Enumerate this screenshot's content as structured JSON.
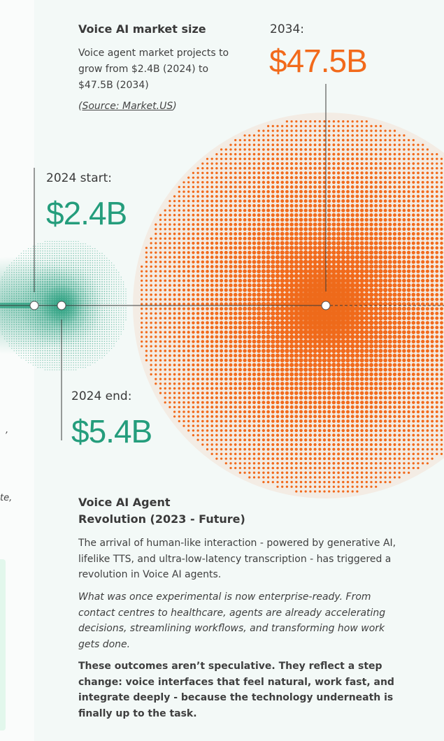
{
  "colors": {
    "green": "#249d7c",
    "orange": "#f26a1b",
    "beige": "#f3ece4",
    "panel": "#f3f9f7"
  },
  "market": {
    "title": "Voice AI market size",
    "description": "Voice agent market projects to grow from $2.4B (2024) to $47.5B (2034)",
    "source_open": "(",
    "source": "Source: Market.US",
    "source_close": ")"
  },
  "points": [
    {
      "label": "2024 start:",
      "value": "$2.4B"
    },
    {
      "label": "2024 end:",
      "value": "$5.4B"
    },
    {
      "label": "2034:",
      "value": "$47.5B"
    }
  ],
  "left_fragments": [
    ",",
    "te,"
  ],
  "revolution": {
    "title_line1": "Voice AI Agent",
    "title_line2": "Revolution (2023 - Future)",
    "para1": "The arrival of human-like interaction - powered by generative AI, lifelike TTS, and ultra-low-latency transcription - has triggered a revolution in Voice AI agents.",
    "para2": "What was once experimental is now enterprise-ready. From contact centres to healthcare, agents are already accelerating decisions, streamlining workflows, and transforming how work gets done.",
    "para3": "These outcomes aren’t speculative. They reflect a step change: voice interfaces that feel natural, work fast, and integrate deeply - because the technology underneath is finally up to the task."
  }
}
